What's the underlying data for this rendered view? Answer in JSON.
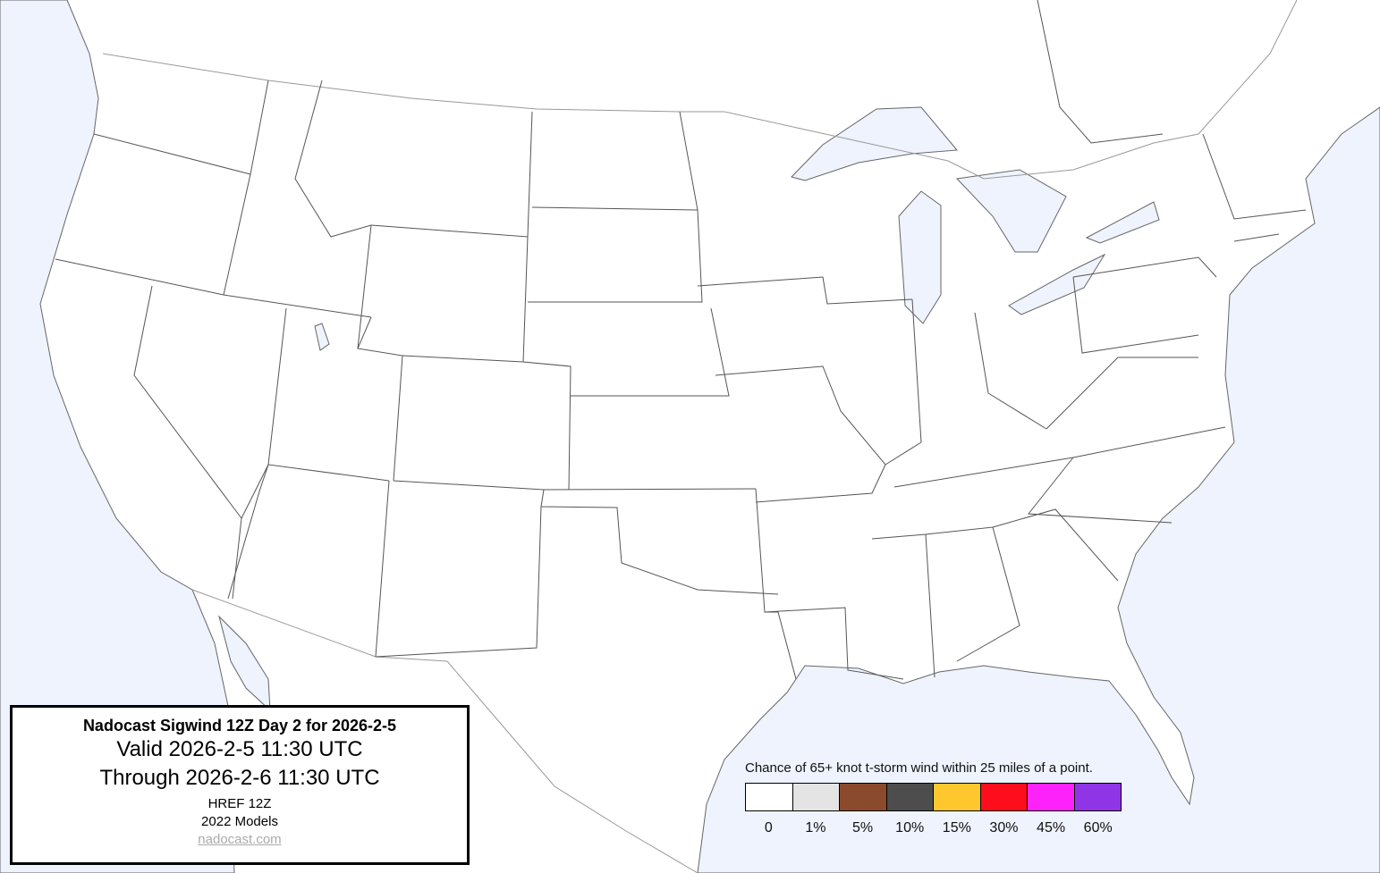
{
  "info": {
    "title": "Nadocast Sigwind 12Z Day 2 for 2026-2-5",
    "valid": "Valid 2026-2-5 11:30 UTC",
    "through": "Through 2026-2-6 11:30 UTC",
    "model": "HREF 12Z",
    "models_year": "2022 Models",
    "link": "nadocast.com"
  },
  "legend": {
    "title": "Chance of 65+ knot t-storm wind within 25 miles of a point.",
    "items": [
      {
        "label": "0",
        "color": "#ffffff"
      },
      {
        "label": "1%",
        "color": "#e4e4e4"
      },
      {
        "label": "5%",
        "color": "#8b4a2b"
      },
      {
        "label": "10%",
        "color": "#4d4d4d"
      },
      {
        "label": "15%",
        "color": "#fec72e"
      },
      {
        "label": "30%",
        "color": "#fe0e1c"
      },
      {
        "label": "45%",
        "color": "#fe22fa"
      },
      {
        "label": "60%",
        "color": "#9035e6"
      }
    ]
  },
  "colors": {
    "water": "#eef3fd",
    "land": "#ffffff",
    "borders": "#555555"
  }
}
